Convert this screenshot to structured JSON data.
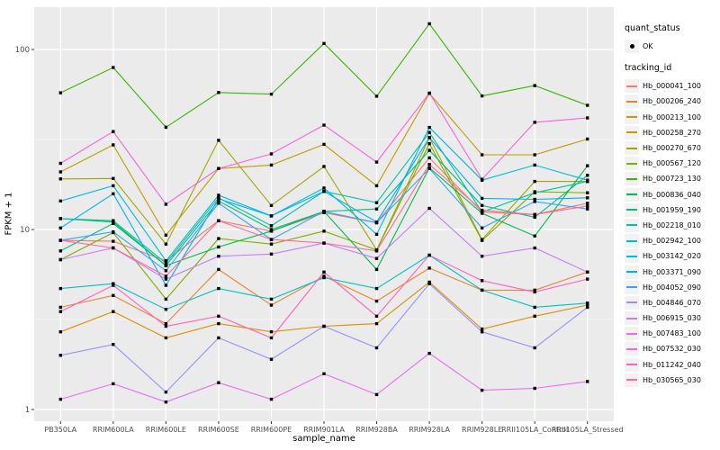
{
  "figure": {
    "background": "#FFFFFF",
    "panel_background": "#EBEBEB",
    "gridline_color": "#FFFFFF",
    "tick_label_color": "#4D4D4D",
    "point_color": "#000000"
  },
  "axes": {
    "x_title": "sample_name",
    "y_title": "FPKM + 1"
  },
  "legend": {
    "quant_title": "quant_status",
    "quant_ok_label": "OK",
    "tracking_title": "tracking_id"
  },
  "chart_data": {
    "type": "line",
    "title": "",
    "xlabel": "sample_name",
    "ylabel": "FPKM + 1",
    "y_scale": "log10",
    "ylim": [
      1,
      170
    ],
    "y_ticks": [
      1,
      10,
      100
    ],
    "grid": true,
    "legend_position": "right",
    "marker": "black point (quant_status OK)",
    "categories": [
      "PB350LA",
      "RRIM600LA",
      "RRIM600LE",
      "RRIM600SE",
      "RRIM600PE",
      "RRIM901LA",
      "RRIM928BA",
      "RRIM928LA",
      "RRIM928LE",
      "RRII105LA_Control",
      "RRII105LA_Stressed"
    ],
    "series": [
      {
        "name": "Hb_000041_100",
        "color": "#F8766D",
        "values": [
          8.7,
          8.6,
          6.7,
          11.2,
          9.8,
          12.4,
          10.9,
          25.0,
          12.5,
          12.1,
          14.0
        ]
      },
      {
        "name": "Hb_000206_240",
        "color": "#EA8331",
        "values": [
          3.7,
          4.3,
          3.0,
          6.0,
          3.8,
          5.5,
          4.0,
          6.1,
          4.6,
          4.6,
          5.8
        ]
      },
      {
        "name": "Hb_000213_100",
        "color": "#D89000",
        "values": [
          2.7,
          3.5,
          2.5,
          3.0,
          2.7,
          2.9,
          3.0,
          5.1,
          2.8,
          3.3,
          3.8
        ]
      },
      {
        "name": "Hb_000258_270",
        "color": "#C09B00",
        "values": [
          20.9,
          29.5,
          9.3,
          21.8,
          22.8,
          29.7,
          17.5,
          57.0,
          26.0,
          26.0,
          31.8
        ]
      },
      {
        "name": "Hb_000270_670",
        "color": "#A3A500",
        "values": [
          19.1,
          19.2,
          8.3,
          31.3,
          13.6,
          22.4,
          7.7,
          32.4,
          8.8,
          18.5,
          18.5
        ]
      },
      {
        "name": "Hb_000567_120",
        "color": "#7CAE00",
        "values": [
          6.8,
          9.6,
          4.1,
          8.9,
          8.3,
          9.8,
          7.7,
          30.0,
          8.7,
          16.2,
          16.0
        ]
      },
      {
        "name": "Hb_000723_130",
        "color": "#39B600",
        "values": [
          57.5,
          79.4,
          37.0,
          57.7,
          56.5,
          108.0,
          55.0,
          139.0,
          55.2,
          63.0,
          49.0
        ]
      },
      {
        "name": "Hb_000836_040",
        "color": "#00BB4E",
        "values": [
          11.5,
          11.0,
          6.3,
          8.0,
          9.8,
          12.6,
          6.0,
          22.0,
          12.3,
          9.2,
          22.6
        ]
      },
      {
        "name": "Hb_001959_190",
        "color": "#00BF7D",
        "values": [
          7.6,
          10.8,
          6.3,
          14.4,
          10.0,
          12.6,
          13.0,
          27.5,
          13.6,
          11.7,
          20.0
        ]
      },
      {
        "name": "Hb_002218_010",
        "color": "#00C1A3",
        "values": [
          11.5,
          11.2,
          6.5,
          15.0,
          10.5,
          16.3,
          14.1,
          34.6,
          12.5,
          16.0,
          18.5
        ]
      },
      {
        "name": "Hb_002942_100",
        "color": "#00BFC4",
        "values": [
          4.7,
          5.0,
          3.6,
          4.7,
          4.1,
          5.4,
          4.7,
          7.2,
          4.6,
          3.7,
          3.9
        ]
      },
      {
        "name": "Hb_003142_020",
        "color": "#00BAE0",
        "values": [
          14.4,
          17.5,
          6.7,
          15.5,
          11.9,
          17.0,
          9.4,
          36.9,
          18.8,
          22.8,
          18.8
        ]
      },
      {
        "name": "Hb_003371_090",
        "color": "#00B0F6",
        "values": [
          10.2,
          15.8,
          4.9,
          14.8,
          11.9,
          16.3,
          11.0,
          32.4,
          14.9,
          14.7,
          15.0
        ]
      },
      {
        "name": "Hb_004052_090",
        "color": "#35A2FF",
        "values": [
          8.7,
          9.7,
          5.9,
          14.0,
          8.8,
          12.6,
          10.9,
          21.8,
          10.2,
          14.3,
          13.0
        ]
      },
      {
        "name": "Hb_004846_070",
        "color": "#9590FF",
        "values": [
          2.0,
          2.3,
          1.25,
          2.5,
          1.9,
          2.9,
          2.2,
          5.0,
          2.7,
          2.2,
          3.7
        ]
      },
      {
        "name": "Hb_006915_030",
        "color": "#C77CFF",
        "values": [
          6.8,
          7.9,
          5.3,
          7.1,
          7.3,
          8.4,
          6.9,
          13.1,
          7.1,
          7.9,
          5.8
        ]
      },
      {
        "name": "Hb_007483_100",
        "color": "#E76BF3",
        "values": [
          1.14,
          1.39,
          1.1,
          1.41,
          1.14,
          1.58,
          1.21,
          2.05,
          1.28,
          1.31,
          1.43
        ]
      },
      {
        "name": "Hb_007532_030",
        "color": "#FA62DB",
        "values": [
          23.3,
          35.0,
          13.8,
          21.8,
          26.3,
          38.0,
          23.7,
          57.3,
          19.0,
          39.4,
          41.7
        ]
      },
      {
        "name": "Hb_011242_040",
        "color": "#FF62BC",
        "values": [
          3.5,
          4.9,
          2.9,
          3.3,
          2.5,
          5.8,
          3.3,
          7.2,
          5.2,
          4.5,
          5.3
        ]
      },
      {
        "name": "Hb_030565_030",
        "color": "#FF6A98",
        "values": [
          8.7,
          7.9,
          5.5,
          11.2,
          8.8,
          8.4,
          7.6,
          23.0,
          12.8,
          12.1,
          13.5
        ]
      }
    ]
  }
}
